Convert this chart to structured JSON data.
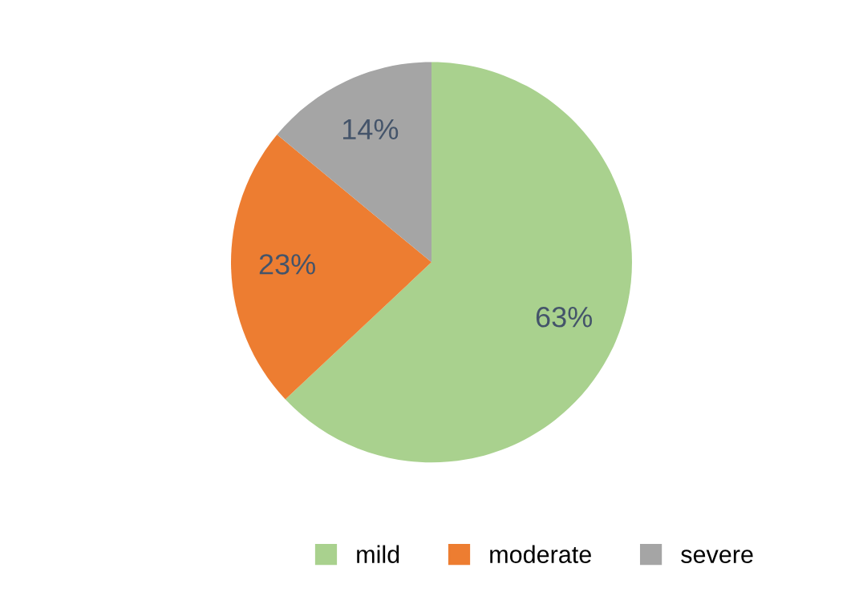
{
  "chart_data": {
    "type": "pie",
    "categories": [
      "mild",
      "moderate",
      "severe"
    ],
    "values": [
      63,
      23,
      14
    ],
    "colors": [
      "#a9d18e",
      "#ed7d31",
      "#a5a5a5"
    ],
    "value_labels": [
      "63%",
      "23%",
      "14%"
    ],
    "legend": "bottom"
  }
}
